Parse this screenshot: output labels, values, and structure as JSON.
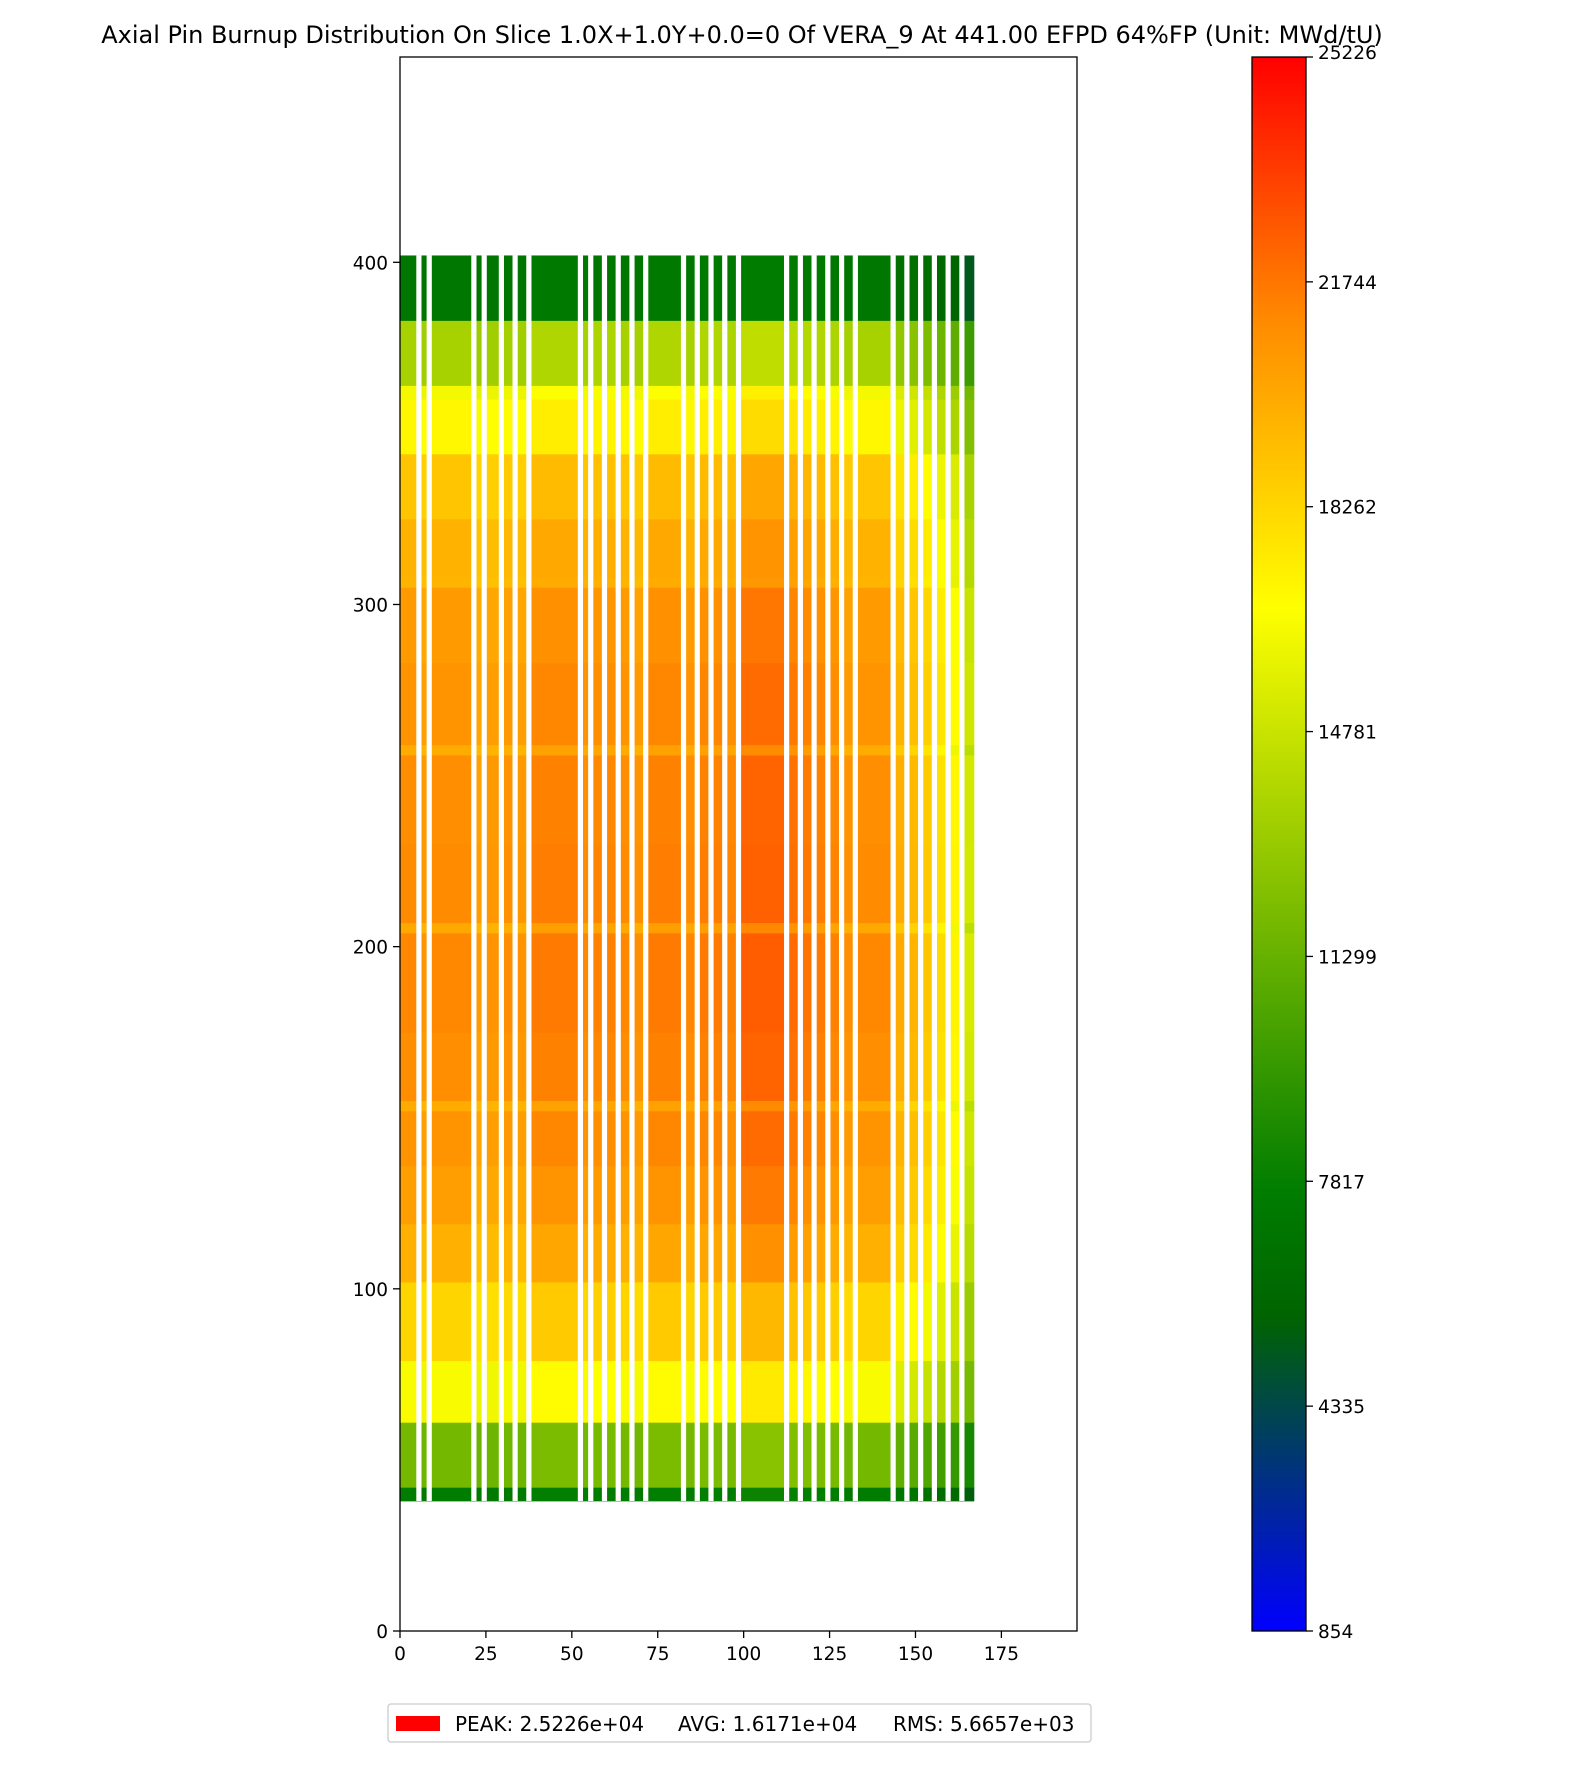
{
  "chart_data": {
    "type": "heatmap",
    "title": "Axial Pin Burnup Distribution On Slice 1.0X+1.0Y+0.0=0 Of VERA_9 At 441.00 EFPD 64%FP (Unit: MWd/tU)",
    "xlabel": "",
    "ylabel": "",
    "xlim": [
      0,
      197
    ],
    "ylim": [
      0,
      460
    ],
    "x_ticks": [
      "0",
      "25",
      "50",
      "75",
      "100",
      "125",
      "150",
      "175"
    ],
    "y_ticks": [
      "0",
      "100",
      "200",
      "300",
      "400"
    ],
    "data_extent": {
      "x": [
        0,
        167
      ],
      "y": [
        38,
        402
      ]
    },
    "colorbar": {
      "min": 854,
      "max": 25226,
      "ticks": [
        "854",
        "4335",
        "7817",
        "11299",
        "14781",
        "18262",
        "21744",
        "25226"
      ],
      "colors": [
        "#0000ff",
        "#006400",
        "#007d00",
        "#ffff00",
        "#ff8c00",
        "#ff0000"
      ]
    },
    "gap_columns_x": [
      5.5,
      8.5,
      21.5,
      24.5,
      29.5,
      33.5,
      37.5,
      52.5,
      55.5,
      59.5,
      63.5,
      67.5,
      71.5,
      82.5,
      86.5,
      90.5,
      94.5,
      98.5,
      112.5,
      116.5,
      120.5,
      124.5,
      128.5,
      132.5,
      143.5,
      147.5,
      151.5,
      155.5,
      159.5,
      163.5
    ],
    "columns": [
      {
        "x0": 0,
        "x1": 5.5,
        "f": 1.0
      },
      {
        "x0": 5.5,
        "x1": 8.5,
        "f": 0.98
      },
      {
        "x0": 8.5,
        "x1": 21.5,
        "f": 1.0
      },
      {
        "x0": 21.5,
        "x1": 24.5,
        "f": 0.97
      },
      {
        "x0": 24.5,
        "x1": 29.5,
        "f": 0.98
      },
      {
        "x0": 29.5,
        "x1": 33.5,
        "f": 0.99
      },
      {
        "x0": 33.5,
        "x1": 37.5,
        "f": 0.98
      },
      {
        "x0": 37.5,
        "x1": 52.5,
        "f": 1.02
      },
      {
        "x0": 52.5,
        "x1": 55.5,
        "f": 1.0
      },
      {
        "x0": 55.5,
        "x1": 59.5,
        "f": 1.01
      },
      {
        "x0": 59.5,
        "x1": 63.5,
        "f": 1.01
      },
      {
        "x0": 63.5,
        "x1": 67.5,
        "f": 1.0
      },
      {
        "x0": 67.5,
        "x1": 71.5,
        "f": 0.99
      },
      {
        "x0": 71.5,
        "x1": 82.5,
        "f": 1.02
      },
      {
        "x0": 82.5,
        "x1": 86.5,
        "f": 1.0
      },
      {
        "x0": 86.5,
        "x1": 90.5,
        "f": 1.02
      },
      {
        "x0": 90.5,
        "x1": 94.5,
        "f": 1.02
      },
      {
        "x0": 94.5,
        "x1": 98.5,
        "f": 1.01
      },
      {
        "x0": 98.5,
        "x1": 112.5,
        "f": 1.06
      },
      {
        "x0": 112.5,
        "x1": 116.5,
        "f": 1.04
      },
      {
        "x0": 116.5,
        "x1": 120.5,
        "f": 1.03
      },
      {
        "x0": 120.5,
        "x1": 124.5,
        "f": 1.02
      },
      {
        "x0": 124.5,
        "x1": 128.5,
        "f": 1.01
      },
      {
        "x0": 128.5,
        "x1": 132.5,
        "f": 0.99
      },
      {
        "x0": 132.5,
        "x1": 143.5,
        "f": 1.0
      },
      {
        "x0": 143.5,
        "x1": 147.5,
        "f": 0.94
      },
      {
        "x0": 147.5,
        "x1": 151.5,
        "f": 0.92
      },
      {
        "x0": 151.5,
        "x1": 155.5,
        "f": 0.89
      },
      {
        "x0": 155.5,
        "x1": 159.5,
        "f": 0.85
      },
      {
        "x0": 159.5,
        "x1": 163.5,
        "f": 0.81
      },
      {
        "x0": 163.5,
        "x1": 167,
        "f": 0.72
      }
    ],
    "axial_bands": [
      {
        "y0": 38,
        "y1": 42,
        "v": 7600
      },
      {
        "y0": 42,
        "y1": 61,
        "v": 11800
      },
      {
        "y0": 61,
        "y1": 79,
        "v": 16500
      },
      {
        "y0": 79,
        "y1": 102,
        "v": 18300
      },
      {
        "y0": 102,
        "y1": 119,
        "v": 19700
      },
      {
        "y0": 119,
        "y1": 136,
        "v": 20400
      },
      {
        "y0": 136,
        "y1": 152,
        "v": 20800
      },
      {
        "y0": 152,
        "y1": 155,
        "v": 19900
      },
      {
        "y0": 155,
        "y1": 175,
        "v": 21000
      },
      {
        "y0": 175,
        "y1": 204,
        "v": 21200
      },
      {
        "y0": 204,
        "y1": 207,
        "v": 20000
      },
      {
        "y0": 207,
        "y1": 230,
        "v": 21100
      },
      {
        "y0": 230,
        "y1": 256,
        "v": 21000
      },
      {
        "y0": 256,
        "y1": 259,
        "v": 19900
      },
      {
        "y0": 259,
        "y1": 283,
        "v": 20800
      },
      {
        "y0": 283,
        "y1": 305,
        "v": 20500
      },
      {
        "y0": 305,
        "y1": 308,
        "v": 19500
      },
      {
        "y0": 308,
        "y1": 325,
        "v": 19600
      },
      {
        "y0": 325,
        "y1": 344,
        "v": 18900
      },
      {
        "y0": 344,
        "y1": 360,
        "v": 17000
      },
      {
        "y0": 360,
        "y1": 364,
        "v": 16300
      },
      {
        "y0": 364,
        "y1": 383,
        "v": 13600
      },
      {
        "y0": 383,
        "y1": 402,
        "v": 7200
      }
    ],
    "stats": {
      "peak_label": "PEAK: 2.5226e+04",
      "avg_label": "AVG: 1.6171e+04",
      "rms_label": "RMS: 5.6657e+03"
    },
    "legend_placement": "bottom-center",
    "grid": false
  }
}
